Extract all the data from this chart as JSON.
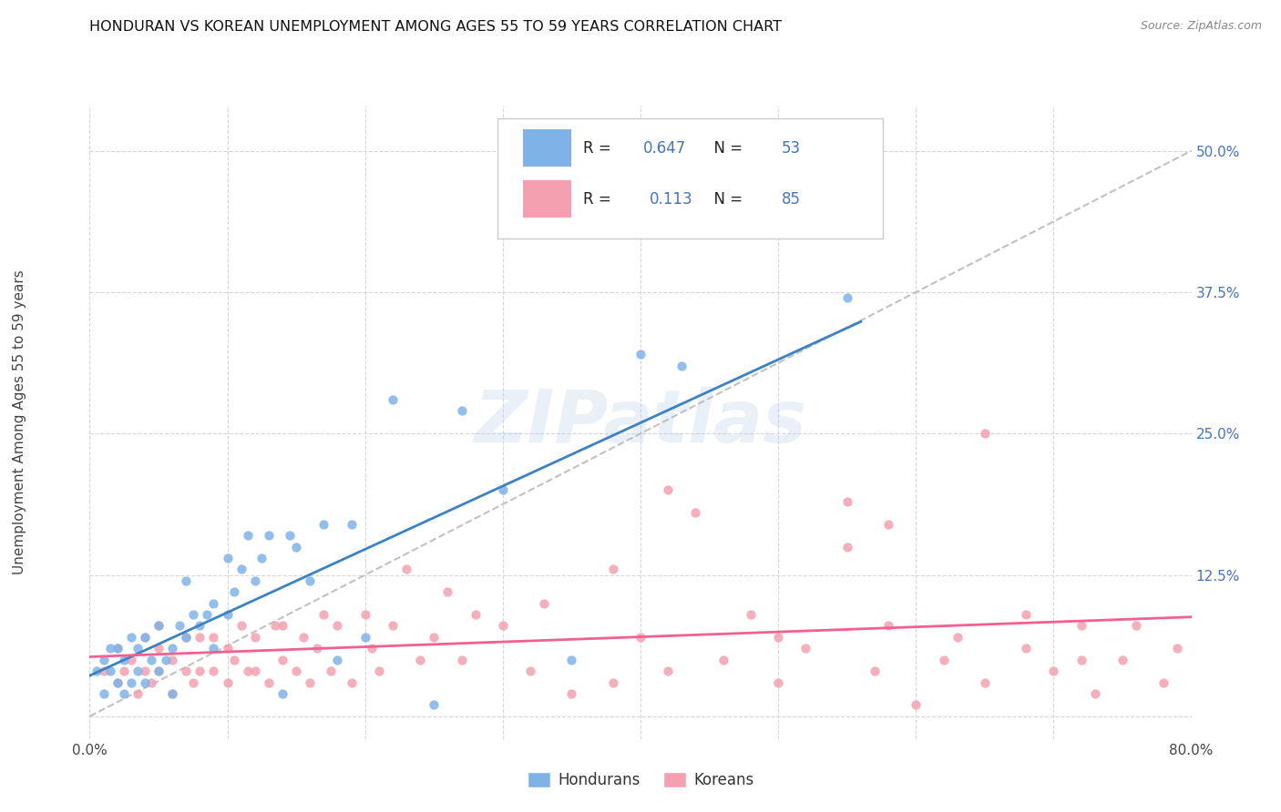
{
  "title": "HONDURAN VS KOREAN UNEMPLOYMENT AMONG AGES 55 TO 59 YEARS CORRELATION CHART",
  "source": "Source: ZipAtlas.com",
  "ylabel": "Unemployment Among Ages 55 to 59 years",
  "xlim": [
    0.0,
    0.8
  ],
  "ylim": [
    -0.02,
    0.54
  ],
  "xticks": [
    0.0,
    0.1,
    0.2,
    0.3,
    0.4,
    0.5,
    0.6,
    0.7,
    0.8
  ],
  "xticklabels": [
    "0.0%",
    "",
    "",
    "",
    "",
    "",
    "",
    "",
    "80.0%"
  ],
  "yticks": [
    0.0,
    0.125,
    0.25,
    0.375,
    0.5
  ],
  "yticklabels": [
    "",
    "12.5%",
    "25.0%",
    "37.5%",
    "50.0%"
  ],
  "background_color": "#ffffff",
  "grid_color": "#cccccc",
  "watermark": "ZIPatlas",
  "honduran_color": "#7fb3e8",
  "korean_color": "#f4a0b0",
  "honduran_line_color": "#3b82c4",
  "korean_line_color": "#f06090",
  "trend_line_color": "#bbbbbb",
  "R_honduran": 0.647,
  "N_honduran": 53,
  "R_korean": 0.113,
  "N_korean": 85,
  "honduran_scatter_x": [
    0.005,
    0.01,
    0.01,
    0.015,
    0.015,
    0.02,
    0.02,
    0.025,
    0.025,
    0.03,
    0.03,
    0.035,
    0.035,
    0.04,
    0.04,
    0.045,
    0.05,
    0.05,
    0.055,
    0.06,
    0.06,
    0.065,
    0.07,
    0.07,
    0.075,
    0.08,
    0.085,
    0.09,
    0.09,
    0.1,
    0.1,
    0.105,
    0.11,
    0.115,
    0.12,
    0.125,
    0.13,
    0.14,
    0.145,
    0.15,
    0.16,
    0.17,
    0.18,
    0.19,
    0.2,
    0.22,
    0.25,
    0.27,
    0.3,
    0.35,
    0.4,
    0.43,
    0.55
  ],
  "honduran_scatter_y": [
    0.04,
    0.05,
    0.02,
    0.04,
    0.06,
    0.03,
    0.06,
    0.02,
    0.05,
    0.03,
    0.07,
    0.04,
    0.06,
    0.03,
    0.07,
    0.05,
    0.04,
    0.08,
    0.05,
    0.06,
    0.02,
    0.08,
    0.07,
    0.12,
    0.09,
    0.08,
    0.09,
    0.1,
    0.06,
    0.09,
    0.14,
    0.11,
    0.13,
    0.16,
    0.12,
    0.14,
    0.16,
    0.02,
    0.16,
    0.15,
    0.12,
    0.17,
    0.05,
    0.17,
    0.07,
    0.28,
    0.01,
    0.27,
    0.2,
    0.05,
    0.32,
    0.31,
    0.37
  ],
  "korean_scatter_x": [
    0.01,
    0.02,
    0.02,
    0.025,
    0.03,
    0.035,
    0.04,
    0.04,
    0.045,
    0.05,
    0.05,
    0.05,
    0.06,
    0.06,
    0.07,
    0.07,
    0.075,
    0.08,
    0.08,
    0.09,
    0.09,
    0.1,
    0.1,
    0.105,
    0.11,
    0.115,
    0.12,
    0.12,
    0.13,
    0.135,
    0.14,
    0.14,
    0.15,
    0.155,
    0.16,
    0.165,
    0.17,
    0.175,
    0.18,
    0.19,
    0.2,
    0.205,
    0.21,
    0.22,
    0.23,
    0.24,
    0.25,
    0.26,
    0.27,
    0.28,
    0.3,
    0.32,
    0.33,
    0.35,
    0.38,
    0.4,
    0.42,
    0.44,
    0.46,
    0.48,
    0.5,
    0.52,
    0.55,
    0.57,
    0.58,
    0.6,
    0.62,
    0.63,
    0.65,
    0.68,
    0.7,
    0.72,
    0.73,
    0.75,
    0.76,
    0.78,
    0.79,
    0.58,
    0.65,
    0.68,
    0.72,
    0.38,
    0.42,
    0.5,
    0.55
  ],
  "korean_scatter_y": [
    0.04,
    0.03,
    0.06,
    0.04,
    0.05,
    0.02,
    0.04,
    0.07,
    0.03,
    0.04,
    0.06,
    0.08,
    0.02,
    0.05,
    0.04,
    0.07,
    0.03,
    0.04,
    0.07,
    0.04,
    0.07,
    0.03,
    0.06,
    0.05,
    0.08,
    0.04,
    0.04,
    0.07,
    0.03,
    0.08,
    0.05,
    0.08,
    0.04,
    0.07,
    0.03,
    0.06,
    0.09,
    0.04,
    0.08,
    0.03,
    0.09,
    0.06,
    0.04,
    0.08,
    0.13,
    0.05,
    0.07,
    0.11,
    0.05,
    0.09,
    0.08,
    0.04,
    0.1,
    0.02,
    0.03,
    0.07,
    0.04,
    0.18,
    0.05,
    0.09,
    0.03,
    0.06,
    0.19,
    0.04,
    0.08,
    0.01,
    0.05,
    0.07,
    0.03,
    0.06,
    0.04,
    0.08,
    0.02,
    0.05,
    0.08,
    0.03,
    0.06,
    0.17,
    0.25,
    0.09,
    0.05,
    0.13,
    0.2,
    0.07,
    0.15
  ],
  "diag_line_x": [
    0.0,
    0.8
  ],
  "diag_line_y": [
    0.0,
    0.5
  ]
}
